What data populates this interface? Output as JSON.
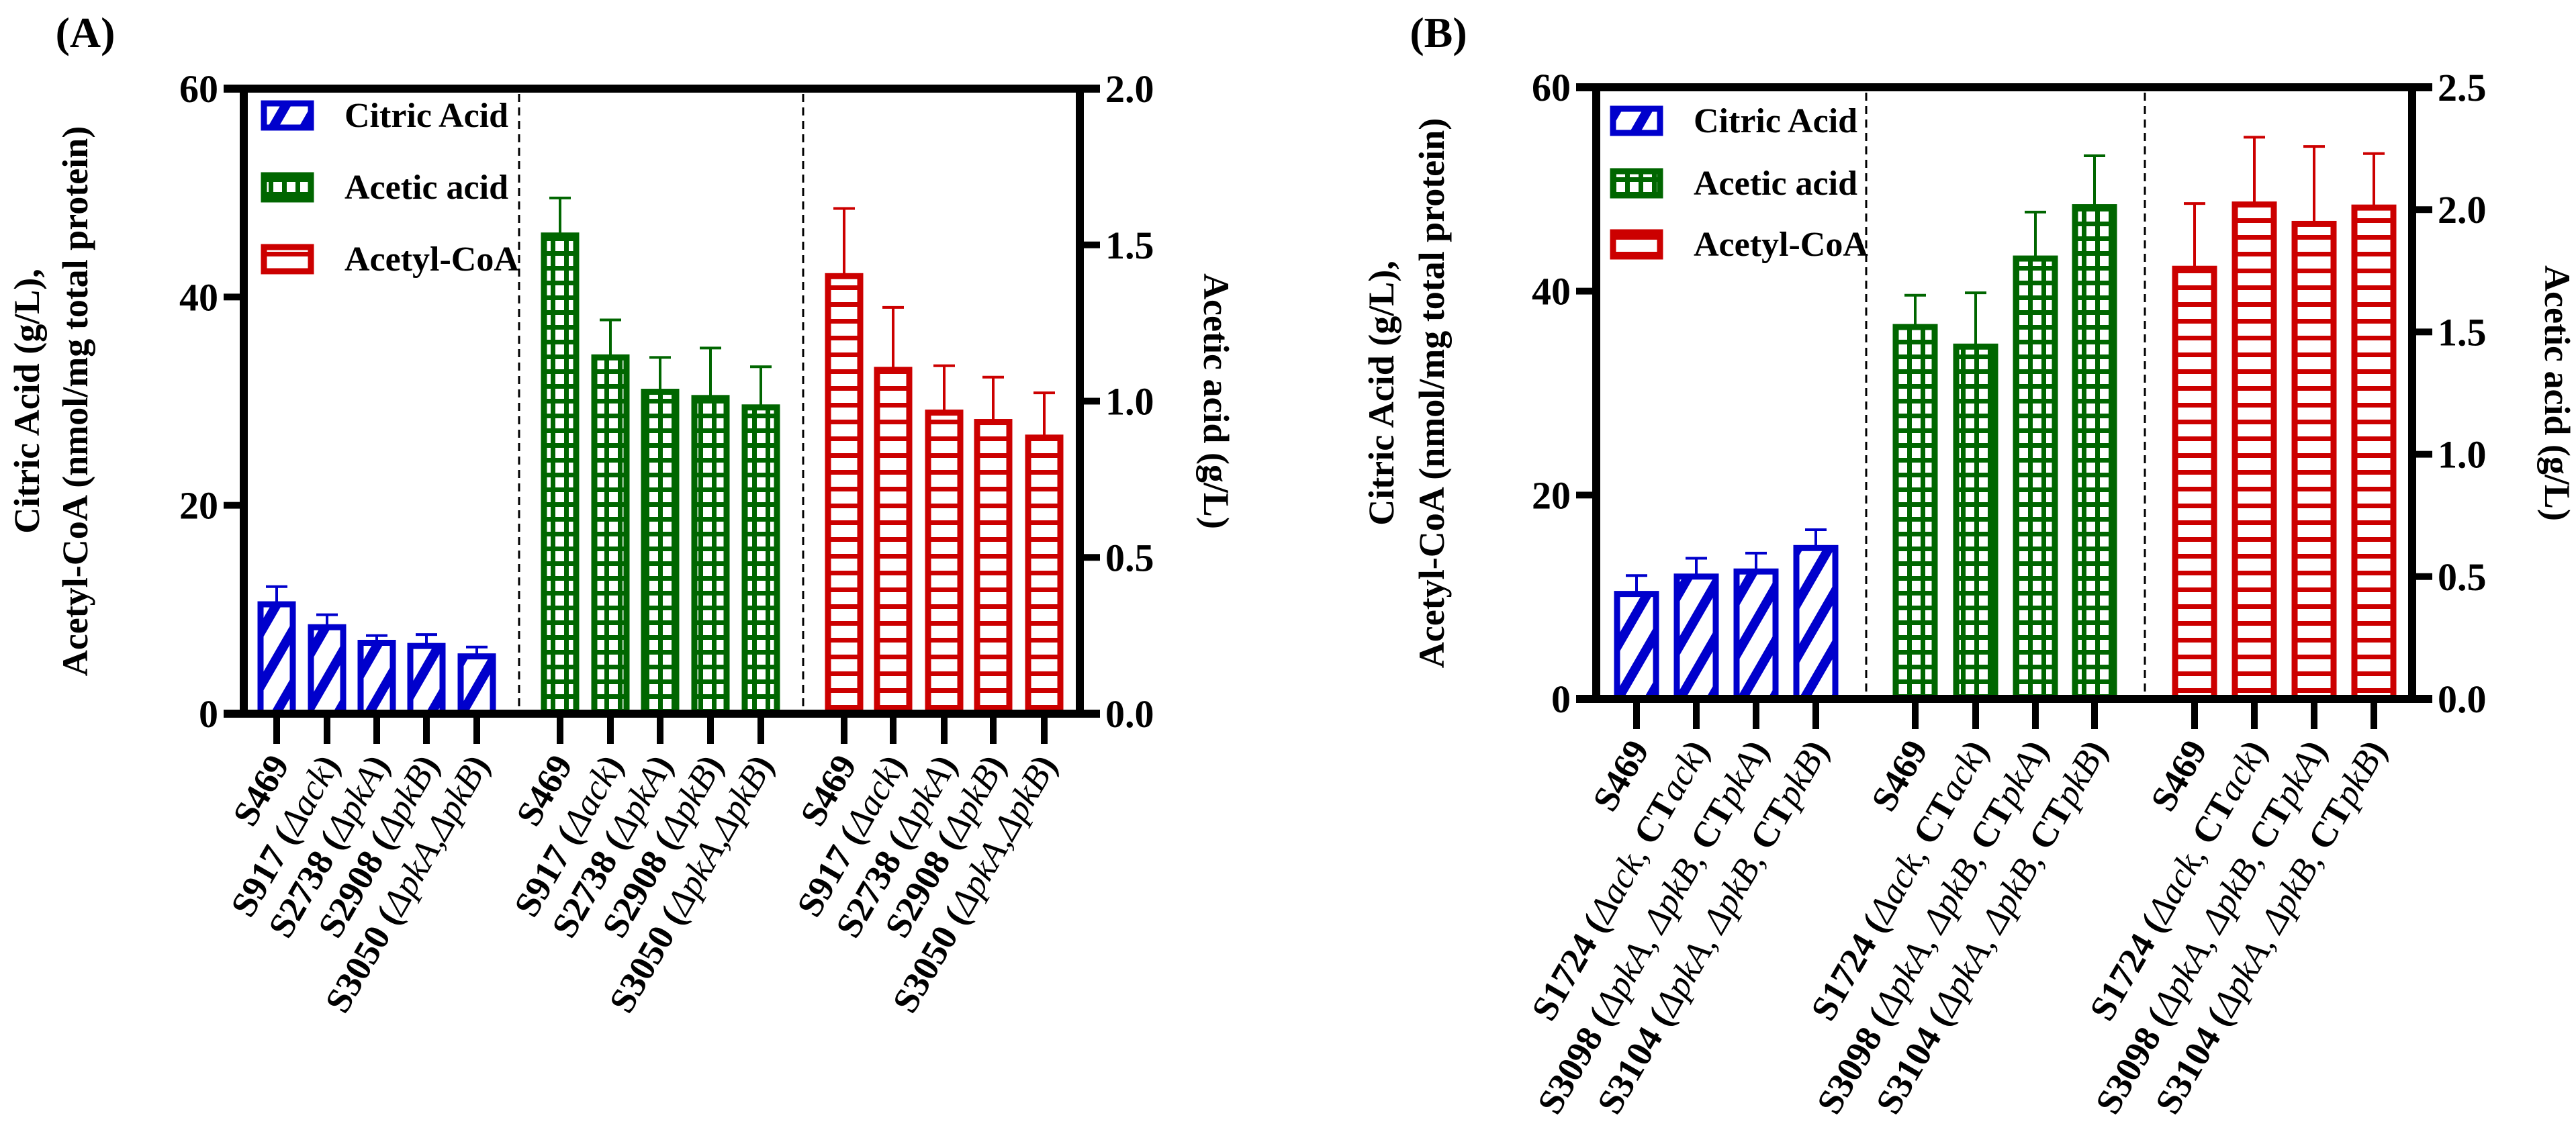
{
  "colors": {
    "citric": "#0000CC",
    "acetic": "#006600",
    "acetyl": "#CC0000",
    "axis": "#000000"
  },
  "chart_data": [
    {
      "panel": "(A)",
      "type": "bar",
      "ylabel_line1": "Citric Acid (g/L),",
      "ylabel_line2": "Acetyl-CoA (nmol/mg total protein)",
      "y2label": "Acetic acid (g/L)",
      "ylim": [
        0,
        60
      ],
      "yticks": [
        "0",
        "20",
        "40",
        "60"
      ],
      "y2lim": [
        0,
        2.0
      ],
      "y2ticks": [
        "0.0",
        "0.5",
        "1.0",
        "1.5",
        "2.0"
      ],
      "legend": [
        "Citric Acid",
        "Acetic acid",
        "Acetyl-CoA"
      ],
      "legend_position": "top-left",
      "categories": [
        [
          {
            "t": "S469",
            "i": false
          }
        ],
        [
          {
            "t": "S917 (",
            "i": false
          },
          {
            "t": "Δack",
            "i": true
          },
          {
            "t": ")",
            "i": false
          }
        ],
        [
          {
            "t": "S2738 (",
            "i": false
          },
          {
            "t": "ΔpkA",
            "i": true
          },
          {
            "t": ")",
            "i": false
          }
        ],
        [
          {
            "t": "S2908 (",
            "i": false
          },
          {
            "t": "ΔpkB",
            "i": true
          },
          {
            "t": ")",
            "i": false
          }
        ],
        [
          {
            "t": "S3050 (",
            "i": false
          },
          {
            "t": "ΔpkA,ΔpkB",
            "i": true
          },
          {
            "t": ")",
            "i": false
          }
        ]
      ],
      "series": [
        {
          "name": "Citric Acid",
          "axis": "left",
          "values": [
            10.5,
            8.3,
            6.8,
            6.5,
            5.5
          ],
          "errors": [
            1.7,
            1.2,
            0.7,
            1.1,
            0.9
          ]
        },
        {
          "name": "Acetic acid",
          "axis": "right",
          "values": [
            1.53,
            1.14,
            1.03,
            1.01,
            0.98
          ],
          "errors": [
            0.12,
            0.12,
            0.11,
            0.16,
            0.13
          ]
        },
        {
          "name": "Acetyl-CoA",
          "axis": "left",
          "values": [
            42.0,
            33.0,
            28.9,
            28.0,
            26.5
          ],
          "errors": [
            6.5,
            6.0,
            4.5,
            4.3,
            4.3
          ]
        }
      ]
    },
    {
      "panel": "(B)",
      "type": "bar",
      "ylabel_line1": "Citric Acid (g/L),",
      "ylabel_line2": "Acetyl-CoA (nmol/mg total protein)",
      "y2label": "Acetic acid (g/L)",
      "ylim": [
        0,
        60
      ],
      "yticks": [
        "0",
        "20",
        "40",
        "60"
      ],
      "y2lim": [
        0,
        2.5
      ],
      "y2ticks": [
        "0.0",
        "0.5",
        "1.0",
        "1.5",
        "2.0",
        "2.5"
      ],
      "legend": [
        "Citric Acid",
        "Acetic acid",
        "Acetyl-CoA"
      ],
      "legend_position": "top-left",
      "categories": [
        [
          {
            "t": "S469",
            "i": false
          }
        ],
        [
          {
            "t": "S1724 (",
            "i": false
          },
          {
            "t": "Δack, ",
            "i": true
          },
          {
            "t": "CT",
            "i": false
          },
          {
            "t": "ack",
            "i": true
          },
          {
            "t": ")",
            "i": false
          }
        ],
        [
          {
            "t": "S3098 (",
            "i": false
          },
          {
            "t": "ΔpkA, ΔpkB, ",
            "i": true
          },
          {
            "t": "CT",
            "i": false
          },
          {
            "t": "pkA",
            "i": true
          },
          {
            "t": ")",
            "i": false
          }
        ],
        [
          {
            "t": "S3104 (",
            "i": false
          },
          {
            "t": "ΔpkA, ΔpkB, ",
            "i": true
          },
          {
            "t": "CT",
            "i": false
          },
          {
            "t": "pkB",
            "i": true
          },
          {
            "t": ")",
            "i": false
          }
        ]
      ],
      "series": [
        {
          "name": "Citric Acid",
          "axis": "left",
          "values": [
            10.3,
            12.0,
            12.5,
            14.8
          ],
          "errors": [
            1.8,
            1.8,
            1.8,
            1.8
          ]
        },
        {
          "name": "Acetic acid",
          "axis": "right",
          "values": [
            1.52,
            1.44,
            1.8,
            2.01
          ],
          "errors": [
            0.13,
            0.22,
            0.19,
            0.21
          ]
        },
        {
          "name": "Acetyl-CoA",
          "axis": "left",
          "values": [
            42.2,
            48.5,
            46.6,
            48.2
          ],
          "errors": [
            6.4,
            6.6,
            7.6,
            5.3
          ]
        }
      ]
    }
  ]
}
